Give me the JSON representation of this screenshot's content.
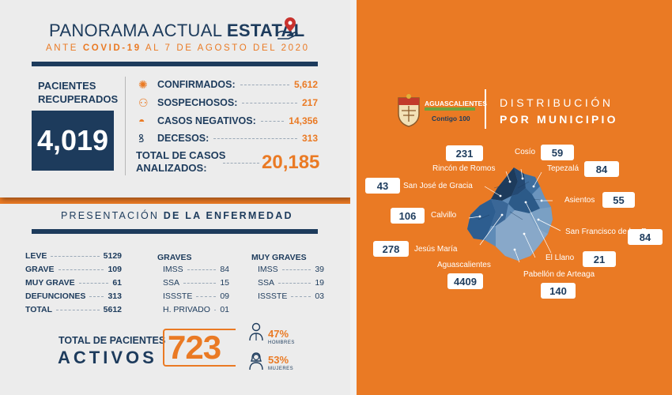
{
  "header": {
    "title_light": "PANORAMA ACTUAL",
    "title_bold": "ESTATAL",
    "subtitle_pre": "ANTE",
    "subtitle_bold": "COVID-19",
    "subtitle_post": "AL 7 DE AGOSTO DEL 2020",
    "icon": "hand-location-pin-icon"
  },
  "recovered": {
    "label_line1": "PACIENTES",
    "label_line2": "RECUPERADOS",
    "value": "4,019"
  },
  "stats": [
    {
      "label": "CONFIRMADOS:",
      "value": "5,612",
      "icon": "virus-icon"
    },
    {
      "label": "SOSPECHOSOS:",
      "value": "217",
      "icon": "person-virus-icon"
    },
    {
      "label": "CASOS NEGATIVOS:",
      "value": "14,356",
      "icon": "face-mask-icon"
    },
    {
      "label": "DECESOS:",
      "value": "313",
      "icon": "ribbon-icon"
    }
  ],
  "total_cases": {
    "label_line1": "TOTAL DE CASOS",
    "label_line2": "ANALIZADOS:",
    "value": "20,185"
  },
  "presentation": {
    "title_light": "PRESENTACIÓN",
    "title_bold": "DE LA ENFERMEDAD",
    "severity": [
      {
        "label": "LEVE",
        "value": "5129"
      },
      {
        "label": "GRAVE",
        "value": "109"
      },
      {
        "label": "MUY GRAVE",
        "value": "61"
      },
      {
        "label": "DEFUNCIONES",
        "value": "313"
      },
      {
        "label": "TOTAL",
        "value": "5612"
      }
    ],
    "graves_header": "GRAVES",
    "graves": [
      {
        "label": "IMSS",
        "value": "84"
      },
      {
        "label": "SSA",
        "value": "15"
      },
      {
        "label": "ISSSTE",
        "value": "09"
      },
      {
        "label": "H. PRIVADO",
        "value": "01"
      }
    ],
    "muy_graves_header": "MUY GRAVES",
    "muy_graves": [
      {
        "label": "IMSS",
        "value": "39"
      },
      {
        "label": "SSA",
        "value": "19"
      },
      {
        "label": "ISSSTE",
        "value": "03"
      }
    ]
  },
  "active": {
    "label_line1": "TOTAL DE PACIENTES",
    "label_line2": "ACTIVOS",
    "value": "723",
    "men_pct": "47%",
    "men_label": "HOMBRES",
    "women_pct": "53%",
    "women_label": "MUJERES"
  },
  "logo": {
    "line1": "AGUASCALIENTES",
    "line3": "Contigo 100",
    "icon": "state-coat-of-arms-icon"
  },
  "distribution": {
    "title_line1": "DISTRIBUCIÓN",
    "title_line2": "POR MUNICIPIO",
    "municipalities": [
      {
        "name": "Rincón de Romos",
        "value": "231"
      },
      {
        "name": "Cosío",
        "value": "59"
      },
      {
        "name": "Tepezalá",
        "value": "84"
      },
      {
        "name": "San José de Gracia",
        "value": "43"
      },
      {
        "name": "Asientos",
        "value": "55"
      },
      {
        "name": "Calvillo",
        "value": "106"
      },
      {
        "name": "San Francisco de los Romo",
        "value": "84"
      },
      {
        "name": "Jesús María",
        "value": "278"
      },
      {
        "name": "El Llano",
        "value": "21"
      },
      {
        "name": "Aguascalientes",
        "value": "4409"
      },
      {
        "name": "Pabellón de Arteaga",
        "value": "140"
      }
    ],
    "map_icon": "aguascalientes-state-map-icon"
  },
  "colors": {
    "navy": "#1d3b5c",
    "orange": "#ea7a24",
    "panel": "#ececec"
  }
}
